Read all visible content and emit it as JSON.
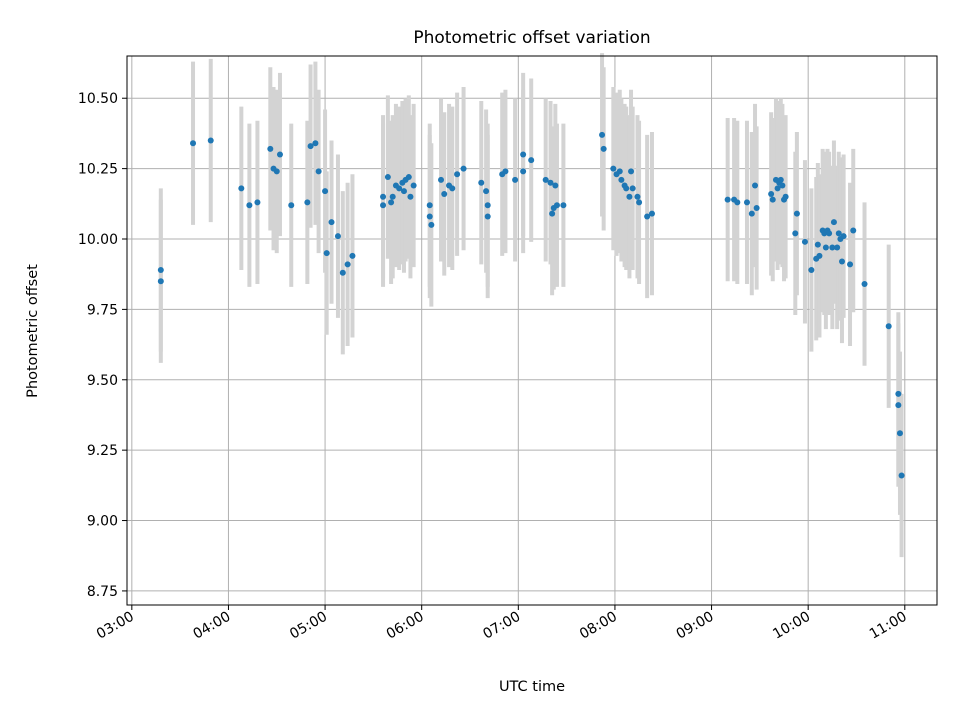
{
  "chart_data": {
    "type": "scatter",
    "title": "Photometric offset variation",
    "xlabel": "UTC time",
    "ylabel": "Photometric offset",
    "x_unit": "hours UTC",
    "xlim": [
      "02:57",
      "11:20"
    ],
    "ylim": [
      8.7,
      10.65
    ],
    "xticks": [
      "03:00",
      "04:00",
      "05:00",
      "06:00",
      "07:00",
      "08:00",
      "09:00",
      "10:00",
      "11:00"
    ],
    "yticks": [
      "8.75",
      "9.00",
      "9.25",
      "9.50",
      "9.75",
      "10.00",
      "10.25",
      "10.50"
    ],
    "grid": true,
    "point_color": "#1f77b4",
    "errorbar_color": "#d3d3d3",
    "error_halfwidth": 0.29,
    "points": [
      {
        "x": "03:18",
        "y": 9.89
      },
      {
        "x": "03:18",
        "y": 9.85
      },
      {
        "x": "03:38",
        "y": 10.34
      },
      {
        "x": "03:49",
        "y": 10.35
      },
      {
        "x": "04:08",
        "y": 10.18
      },
      {
        "x": "04:13",
        "y": 10.12
      },
      {
        "x": "04:18",
        "y": 10.13
      },
      {
        "x": "04:26",
        "y": 10.32
      },
      {
        "x": "04:28",
        "y": 10.25
      },
      {
        "x": "04:30",
        "y": 10.24
      },
      {
        "x": "04:32",
        "y": 10.3
      },
      {
        "x": "04:39",
        "y": 10.12
      },
      {
        "x": "04:49",
        "y": 10.13
      },
      {
        "x": "04:51",
        "y": 10.33
      },
      {
        "x": "04:54",
        "y": 10.34
      },
      {
        "x": "04:56",
        "y": 10.24
      },
      {
        "x": "05:00",
        "y": 10.17
      },
      {
        "x": "05:01",
        "y": 9.95
      },
      {
        "x": "05:04",
        "y": 10.06
      },
      {
        "x": "05:08",
        "y": 10.01
      },
      {
        "x": "05:11",
        "y": 9.88
      },
      {
        "x": "05:14",
        "y": 9.91
      },
      {
        "x": "05:17",
        "y": 9.94
      },
      {
        "x": "05:36",
        "y": 10.15
      },
      {
        "x": "05:36",
        "y": 10.12
      },
      {
        "x": "05:39",
        "y": 10.22
      },
      {
        "x": "05:41",
        "y": 10.13
      },
      {
        "x": "05:42",
        "y": 10.15
      },
      {
        "x": "05:44",
        "y": 10.19
      },
      {
        "x": "05:46",
        "y": 10.18
      },
      {
        "x": "05:48",
        "y": 10.2
      },
      {
        "x": "05:49",
        "y": 10.17
      },
      {
        "x": "05:50",
        "y": 10.21
      },
      {
        "x": "05:52",
        "y": 10.22
      },
      {
        "x": "05:53",
        "y": 10.15
      },
      {
        "x": "05:55",
        "y": 10.19
      },
      {
        "x": "06:05",
        "y": 10.12
      },
      {
        "x": "06:05",
        "y": 10.08
      },
      {
        "x": "06:06",
        "y": 10.05
      },
      {
        "x": "06:12",
        "y": 10.21
      },
      {
        "x": "06:14",
        "y": 10.16
      },
      {
        "x": "06:17",
        "y": 10.19
      },
      {
        "x": "06:19",
        "y": 10.18
      },
      {
        "x": "06:22",
        "y": 10.23
      },
      {
        "x": "06:26",
        "y": 10.25
      },
      {
        "x": "06:37",
        "y": 10.2
      },
      {
        "x": "06:40",
        "y": 10.17
      },
      {
        "x": "06:41",
        "y": 10.12
      },
      {
        "x": "06:41",
        "y": 10.08
      },
      {
        "x": "06:50",
        "y": 10.23
      },
      {
        "x": "06:52",
        "y": 10.24
      },
      {
        "x": "06:58",
        "y": 10.21
      },
      {
        "x": "07:03",
        "y": 10.3
      },
      {
        "x": "07:03",
        "y": 10.24
      },
      {
        "x": "07:08",
        "y": 10.28
      },
      {
        "x": "07:17",
        "y": 10.21
      },
      {
        "x": "07:20",
        "y": 10.2
      },
      {
        "x": "07:21",
        "y": 10.09
      },
      {
        "x": "07:22",
        "y": 10.11
      },
      {
        "x": "07:23",
        "y": 10.19
      },
      {
        "x": "07:24",
        "y": 10.12
      },
      {
        "x": "07:28",
        "y": 10.12
      },
      {
        "x": "07:52",
        "y": 10.37
      },
      {
        "x": "07:53",
        "y": 10.32
      },
      {
        "x": "07:59",
        "y": 10.25
      },
      {
        "x": "08:01",
        "y": 10.23
      },
      {
        "x": "08:03",
        "y": 10.24
      },
      {
        "x": "08:04",
        "y": 10.21
      },
      {
        "x": "08:06",
        "y": 10.19
      },
      {
        "x": "08:07",
        "y": 10.18
      },
      {
        "x": "08:09",
        "y": 10.15
      },
      {
        "x": "08:10",
        "y": 10.24
      },
      {
        "x": "08:11",
        "y": 10.18
      },
      {
        "x": "08:14",
        "y": 10.15
      },
      {
        "x": "08:15",
        "y": 10.13
      },
      {
        "x": "08:20",
        "y": 10.08
      },
      {
        "x": "08:23",
        "y": 10.09
      },
      {
        "x": "09:10",
        "y": 10.14
      },
      {
        "x": "09:14",
        "y": 10.14
      },
      {
        "x": "09:16",
        "y": 10.13
      },
      {
        "x": "09:22",
        "y": 10.13
      },
      {
        "x": "09:25",
        "y": 10.09
      },
      {
        "x": "09:27",
        "y": 10.19
      },
      {
        "x": "09:28",
        "y": 10.11
      },
      {
        "x": "09:37",
        "y": 10.16
      },
      {
        "x": "09:38",
        "y": 10.14
      },
      {
        "x": "09:40",
        "y": 10.21
      },
      {
        "x": "09:41",
        "y": 10.18
      },
      {
        "x": "09:42",
        "y": 10.2
      },
      {
        "x": "09:43",
        "y": 10.21
      },
      {
        "x": "09:44",
        "y": 10.19
      },
      {
        "x": "09:45",
        "y": 10.14
      },
      {
        "x": "09:46",
        "y": 10.15
      },
      {
        "x": "09:52",
        "y": 10.02
      },
      {
        "x": "09:53",
        "y": 10.09
      },
      {
        "x": "09:58",
        "y": 9.99
      },
      {
        "x": "10:02",
        "y": 9.89
      },
      {
        "x": "10:05",
        "y": 9.93
      },
      {
        "x": "10:06",
        "y": 9.98
      },
      {
        "x": "10:07",
        "y": 9.94
      },
      {
        "x": "10:09",
        "y": 10.03
      },
      {
        "x": "10:10",
        "y": 10.02
      },
      {
        "x": "10:11",
        "y": 9.97
      },
      {
        "x": "10:12",
        "y": 10.03
      },
      {
        "x": "10:13",
        "y": 10.02
      },
      {
        "x": "10:15",
        "y": 9.97
      },
      {
        "x": "10:16",
        "y": 10.06
      },
      {
        "x": "10:18",
        "y": 9.97
      },
      {
        "x": "10:19",
        "y": 10.02
      },
      {
        "x": "10:20",
        "y": 10.0
      },
      {
        "x": "10:21",
        "y": 9.92
      },
      {
        "x": "10:22",
        "y": 10.01
      },
      {
        "x": "10:26",
        "y": 9.91
      },
      {
        "x": "10:28",
        "y": 10.03
      },
      {
        "x": "10:35",
        "y": 9.84
      },
      {
        "x": "10:50",
        "y": 9.69
      },
      {
        "x": "10:56",
        "y": 9.45
      },
      {
        "x": "10:56",
        "y": 9.41
      },
      {
        "x": "10:57",
        "y": 9.31
      },
      {
        "x": "10:58",
        "y": 9.16
      }
    ]
  }
}
